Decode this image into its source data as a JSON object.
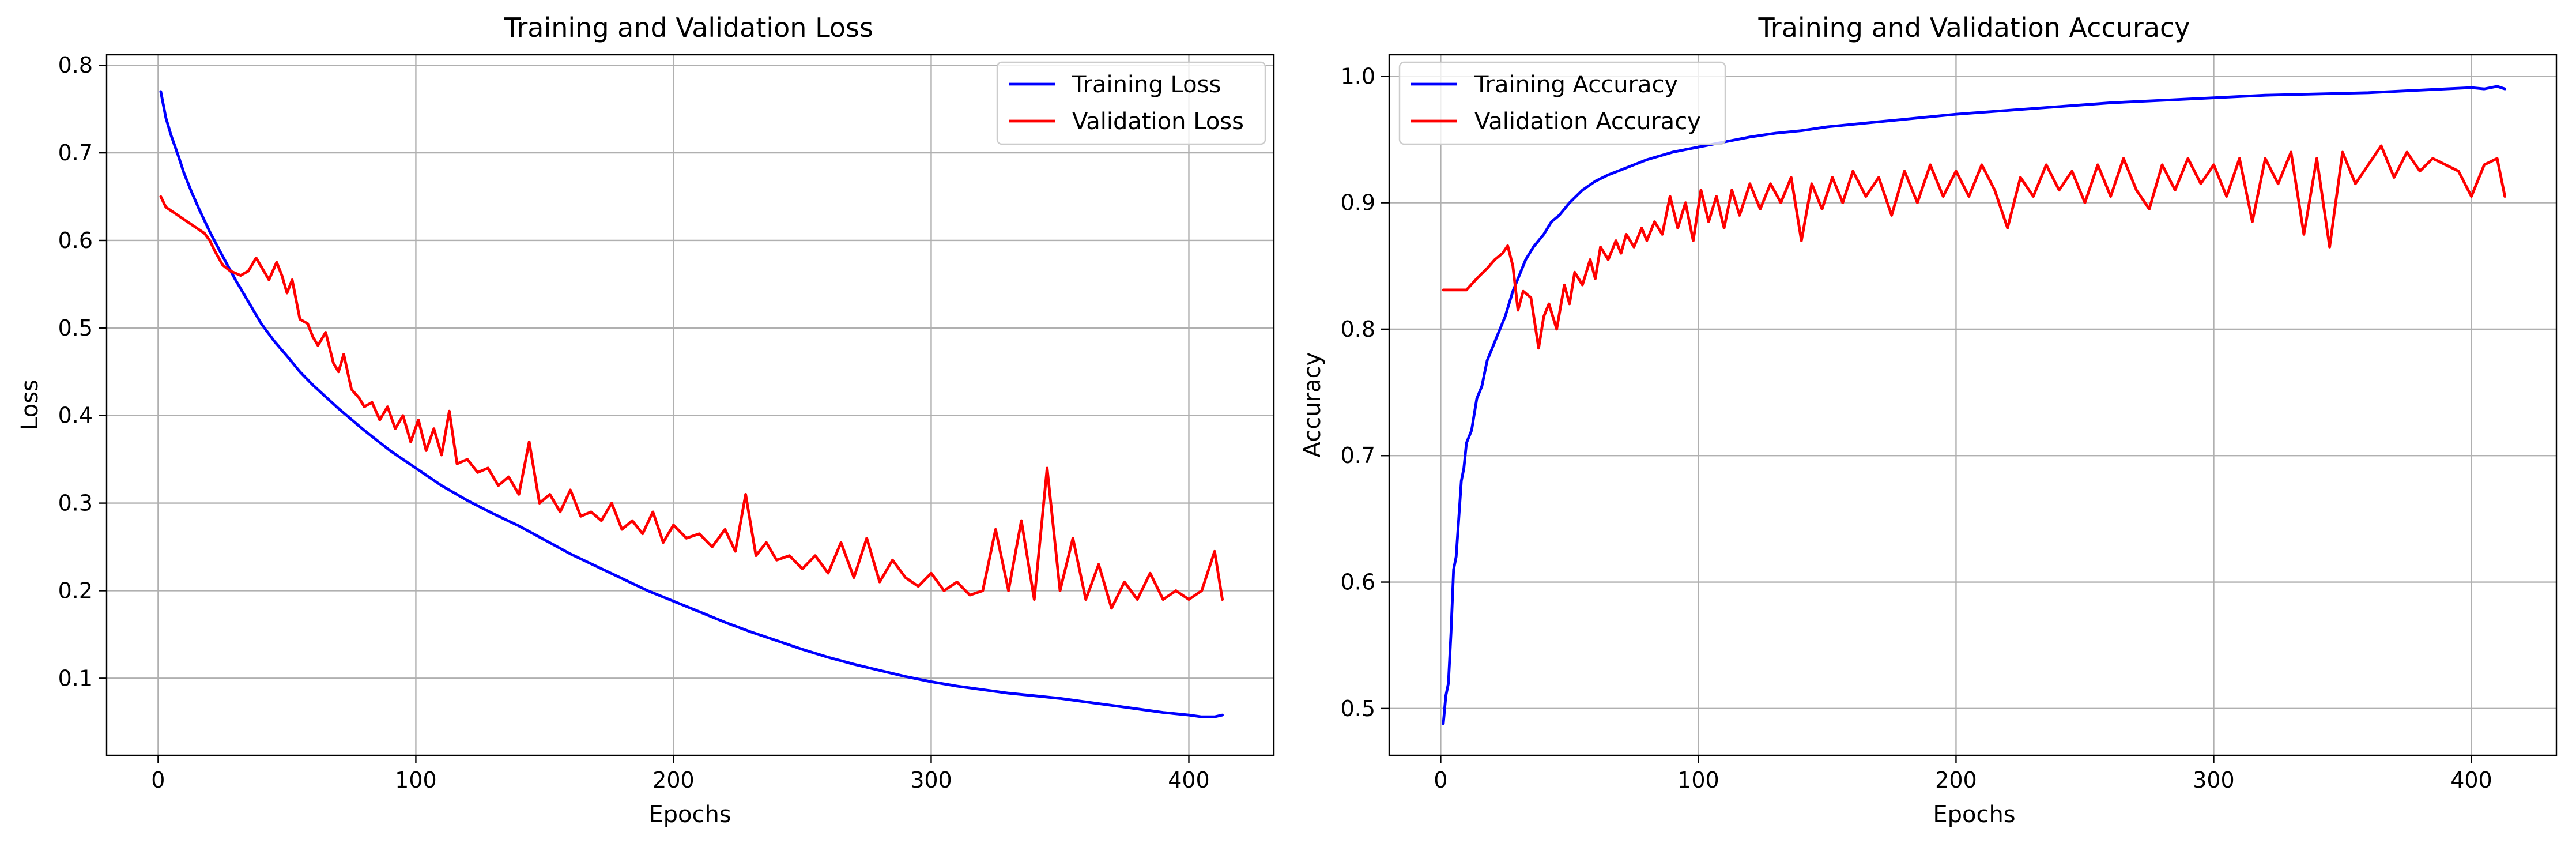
{
  "chart_data": [
    {
      "type": "line",
      "title": "Training and Validation Loss",
      "xlabel": "Epochs",
      "ylabel": "Loss",
      "xlim": [
        -20,
        433
      ],
      "ylim": [
        0.012,
        0.812
      ],
      "xticks": [
        0,
        100,
        200,
        300,
        400
      ],
      "xtick_labels": [
        "0",
        "100",
        "200",
        "300",
        "400"
      ],
      "yticks": [
        0.1,
        0.2,
        0.3,
        0.4,
        0.5,
        0.6,
        0.7,
        0.8
      ],
      "ytick_labels": [
        "0.1",
        "0.2",
        "0.3",
        "0.4",
        "0.5",
        "0.6",
        "0.7",
        "0.8"
      ],
      "grid": true,
      "legend": "top-right",
      "series": [
        {
          "name": "Training Loss",
          "color": "#0000ff",
          "x": [
            1,
            3,
            5,
            8,
            10,
            13,
            16,
            20,
            25,
            30,
            35,
            40,
            45,
            50,
            55,
            60,
            70,
            80,
            90,
            100,
            110,
            120,
            130,
            140,
            150,
            160,
            170,
            180,
            190,
            200,
            210,
            220,
            230,
            240,
            250,
            260,
            270,
            280,
            290,
            300,
            310,
            320,
            330,
            340,
            350,
            360,
            370,
            380,
            390,
            400,
            405,
            410,
            413
          ],
          "y": [
            0.77,
            0.74,
            0.72,
            0.695,
            0.677,
            0.655,
            0.635,
            0.61,
            0.582,
            0.555,
            0.53,
            0.505,
            0.485,
            0.468,
            0.45,
            0.435,
            0.408,
            0.383,
            0.36,
            0.34,
            0.32,
            0.303,
            0.288,
            0.274,
            0.258,
            0.242,
            0.228,
            0.214,
            0.2,
            0.188,
            0.176,
            0.164,
            0.153,
            0.143,
            0.133,
            0.124,
            0.116,
            0.109,
            0.102,
            0.096,
            0.091,
            0.087,
            0.083,
            0.08,
            0.077,
            0.073,
            0.069,
            0.065,
            0.061,
            0.058,
            0.056,
            0.056,
            0.058
          ]
        },
        {
          "name": "Validation Loss",
          "color": "#ff0000",
          "x": [
            1,
            3,
            6,
            10,
            14,
            18,
            20,
            22,
            25,
            28,
            32,
            35,
            38,
            40,
            43,
            46,
            48,
            50,
            52,
            55,
            58,
            60,
            62,
            65,
            68,
            70,
            72,
            75,
            78,
            80,
            83,
            86,
            89,
            92,
            95,
            98,
            101,
            104,
            107,
            110,
            113,
            116,
            120,
            124,
            128,
            132,
            136,
            140,
            144,
            148,
            152,
            156,
            160,
            164,
            168,
            172,
            176,
            180,
            184,
            188,
            192,
            196,
            200,
            205,
            210,
            215,
            220,
            224,
            228,
            232,
            236,
            240,
            245,
            250,
            255,
            260,
            265,
            270,
            275,
            280,
            285,
            290,
            295,
            300,
            305,
            310,
            315,
            320,
            325,
            330,
            335,
            340,
            345,
            350,
            355,
            360,
            365,
            370,
            375,
            380,
            385,
            390,
            395,
            400,
            405,
            410,
            413
          ],
          "y": [
            0.65,
            0.638,
            0.632,
            0.624,
            0.616,
            0.608,
            0.6,
            0.588,
            0.572,
            0.565,
            0.56,
            0.565,
            0.58,
            0.57,
            0.555,
            0.575,
            0.56,
            0.54,
            0.555,
            0.51,
            0.505,
            0.49,
            0.48,
            0.495,
            0.46,
            0.45,
            0.47,
            0.43,
            0.42,
            0.41,
            0.415,
            0.395,
            0.41,
            0.385,
            0.4,
            0.37,
            0.395,
            0.36,
            0.385,
            0.355,
            0.405,
            0.345,
            0.35,
            0.335,
            0.34,
            0.32,
            0.33,
            0.31,
            0.37,
            0.3,
            0.31,
            0.29,
            0.315,
            0.285,
            0.29,
            0.28,
            0.3,
            0.27,
            0.28,
            0.265,
            0.29,
            0.255,
            0.275,
            0.26,
            0.265,
            0.25,
            0.27,
            0.245,
            0.31,
            0.24,
            0.255,
            0.235,
            0.24,
            0.225,
            0.24,
            0.22,
            0.255,
            0.215,
            0.26,
            0.21,
            0.235,
            0.215,
            0.205,
            0.22,
            0.2,
            0.21,
            0.195,
            0.2,
            0.27,
            0.2,
            0.28,
            0.19,
            0.34,
            0.2,
            0.26,
            0.19,
            0.23,
            0.18,
            0.21,
            0.19,
            0.22,
            0.19,
            0.2,
            0.19,
            0.2,
            0.245,
            0.19
          ]
        }
      ]
    },
    {
      "type": "line",
      "title": "Training and Validation Accuracy",
      "xlabel": "Epochs",
      "ylabel": "Accuracy",
      "xlim": [
        -20,
        433
      ],
      "ylim": [
        0.463,
        1.017
      ],
      "xticks": [
        0,
        100,
        200,
        300,
        400
      ],
      "xtick_labels": [
        "0",
        "100",
        "200",
        "300",
        "400"
      ],
      "yticks": [
        0.5,
        0.6,
        0.7,
        0.8,
        0.9,
        1.0
      ],
      "ytick_labels": [
        "0.5",
        "0.6",
        "0.7",
        "0.8",
        "0.9",
        "1.0"
      ],
      "grid": true,
      "legend": "top-left",
      "series": [
        {
          "name": "Training Accuracy",
          "color": "#0000ff",
          "x": [
            1,
            2,
            3,
            4,
            5,
            6,
            7,
            8,
            9,
            10,
            12,
            14,
            16,
            18,
            20,
            22,
            25,
            28,
            30,
            33,
            36,
            40,
            43,
            46,
            50,
            55,
            60,
            65,
            70,
            75,
            80,
            90,
            100,
            110,
            120,
            130,
            140,
            150,
            160,
            170,
            180,
            190,
            200,
            220,
            240,
            260,
            280,
            300,
            320,
            340,
            360,
            380,
            390,
            400,
            405,
            410,
            413
          ],
          "y": [
            0.488,
            0.51,
            0.52,
            0.56,
            0.61,
            0.62,
            0.65,
            0.68,
            0.69,
            0.71,
            0.72,
            0.745,
            0.755,
            0.775,
            0.785,
            0.795,
            0.81,
            0.83,
            0.84,
            0.855,
            0.865,
            0.875,
            0.885,
            0.89,
            0.9,
            0.91,
            0.917,
            0.922,
            0.926,
            0.93,
            0.934,
            0.94,
            0.944,
            0.948,
            0.952,
            0.955,
            0.957,
            0.96,
            0.962,
            0.964,
            0.966,
            0.968,
            0.97,
            0.973,
            0.976,
            0.979,
            0.981,
            0.983,
            0.985,
            0.986,
            0.987,
            0.989,
            0.99,
            0.991,
            0.99,
            0.992,
            0.99
          ]
        },
        {
          "name": "Validation Accuracy",
          "color": "#ff0000",
          "x": [
            1,
            5,
            10,
            14,
            18,
            21,
            24,
            26,
            28,
            30,
            32,
            35,
            38,
            40,
            42,
            45,
            48,
            50,
            52,
            55,
            58,
            60,
            62,
            65,
            68,
            70,
            72,
            75,
            78,
            80,
            83,
            86,
            89,
            92,
            95,
            98,
            101,
            104,
            107,
            110,
            113,
            116,
            120,
            124,
            128,
            132,
            136,
            140,
            144,
            148,
            152,
            156,
            160,
            165,
            170,
            175,
            180,
            185,
            190,
            195,
            200,
            205,
            210,
            215,
            220,
            225,
            230,
            235,
            240,
            245,
            250,
            255,
            260,
            265,
            270,
            275,
            280,
            285,
            290,
            295,
            300,
            305,
            310,
            315,
            320,
            325,
            330,
            335,
            340,
            345,
            350,
            355,
            360,
            365,
            370,
            375,
            380,
            385,
            390,
            395,
            400,
            405,
            410,
            413
          ],
          "y": [
            0.831,
            0.831,
            0.831,
            0.84,
            0.848,
            0.855,
            0.86,
            0.866,
            0.85,
            0.815,
            0.83,
            0.825,
            0.785,
            0.81,
            0.82,
            0.8,
            0.835,
            0.82,
            0.845,
            0.835,
            0.855,
            0.84,
            0.865,
            0.855,
            0.87,
            0.86,
            0.875,
            0.865,
            0.88,
            0.87,
            0.885,
            0.875,
            0.905,
            0.88,
            0.9,
            0.87,
            0.91,
            0.885,
            0.905,
            0.88,
            0.91,
            0.89,
            0.915,
            0.895,
            0.915,
            0.9,
            0.92,
            0.87,
            0.915,
            0.895,
            0.92,
            0.9,
            0.925,
            0.905,
            0.92,
            0.89,
            0.925,
            0.9,
            0.93,
            0.905,
            0.925,
            0.905,
            0.93,
            0.91,
            0.88,
            0.92,
            0.905,
            0.93,
            0.91,
            0.925,
            0.9,
            0.93,
            0.905,
            0.935,
            0.91,
            0.895,
            0.93,
            0.91,
            0.935,
            0.915,
            0.93,
            0.905,
            0.935,
            0.885,
            0.935,
            0.915,
            0.94,
            0.875,
            0.935,
            0.865,
            0.94,
            0.915,
            0.93,
            0.945,
            0.92,
            0.94,
            0.925,
            0.935,
            0.93,
            0.925,
            0.905,
            0.93,
            0.935,
            0.905
          ]
        }
      ]
    }
  ]
}
